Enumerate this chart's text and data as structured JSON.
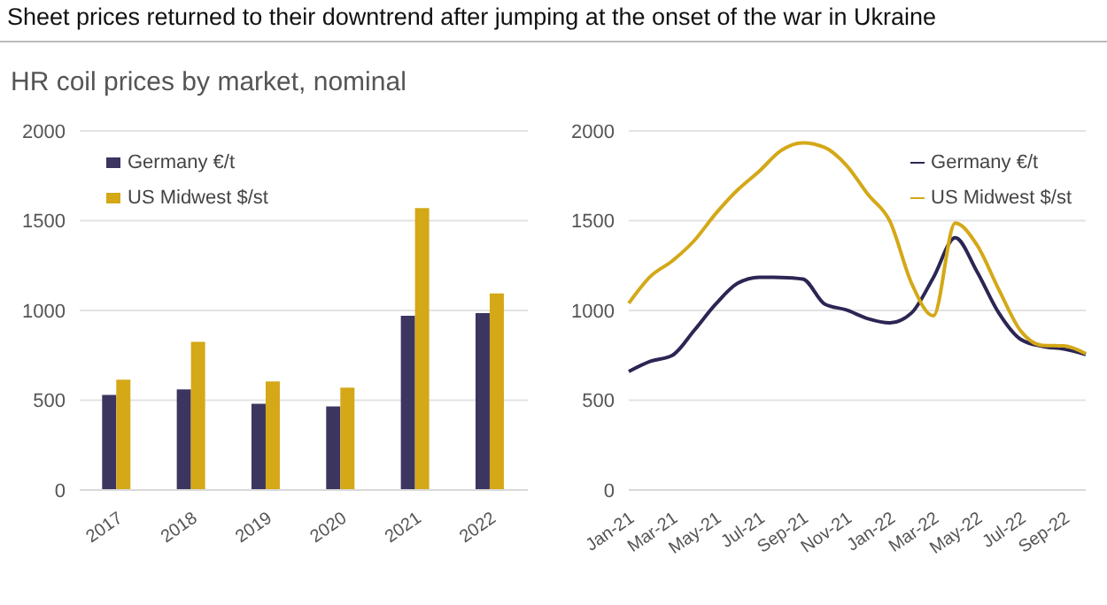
{
  "chart_data": [
    {
      "type": "bar",
      "title": "Sheet prices returned to their downtrend after jumping at the onset of the war in Ukraine",
      "subtitle": "HR coil prices by market, nominal",
      "categories": [
        "2017",
        "2018",
        "2019",
        "2020",
        "2021",
        "2022"
      ],
      "series": [
        {
          "name": "Germany €/t",
          "color": "#3b3560",
          "values": [
            530,
            560,
            480,
            465,
            970,
            985
          ]
        },
        {
          "name": "US Midwest $/st",
          "color": "#d4a817",
          "values": [
            615,
            825,
            605,
            570,
            1570,
            1095
          ]
        }
      ],
      "ylim": [
        0,
        2000
      ],
      "yticks": [
        0,
        500,
        1000,
        1500,
        2000
      ],
      "grid": "y",
      "legend": "top left"
    },
    {
      "type": "line",
      "categories": [
        "Jan-21",
        null,
        "Mar-21",
        null,
        "May-21",
        null,
        "Jul-21",
        null,
        "Sep-21",
        null,
        "Nov-21",
        null,
        "Jan-22",
        null,
        "Mar-22",
        null,
        "May-22",
        null,
        "Jul-22",
        null,
        "Sep-22",
        null
      ],
      "series": [
        {
          "name": "Germany €/t",
          "color": "#2b2653",
          "values": [
            660,
            717,
            750,
            888,
            1036,
            1151,
            1185,
            1184,
            1175,
            1036,
            1003,
            954,
            931,
            987,
            1184,
            1405,
            1217,
            987,
            840,
            800,
            785,
            755
          ]
        },
        {
          "name": "US Midwest $/st",
          "color": "#d4a817",
          "values": [
            1040,
            1190,
            1276,
            1388,
            1540,
            1671,
            1776,
            1891,
            1934,
            1908,
            1809,
            1645,
            1497,
            1150,
            970,
            1487,
            1365,
            1118,
            888,
            806,
            803,
            760
          ]
        }
      ],
      "ylim": [
        0,
        2000
      ],
      "yticks": [
        0,
        500,
        1000,
        1500,
        2000
      ],
      "grid": "y",
      "legend": "top right",
      "marker": "none",
      "line_style": "solid"
    }
  ]
}
